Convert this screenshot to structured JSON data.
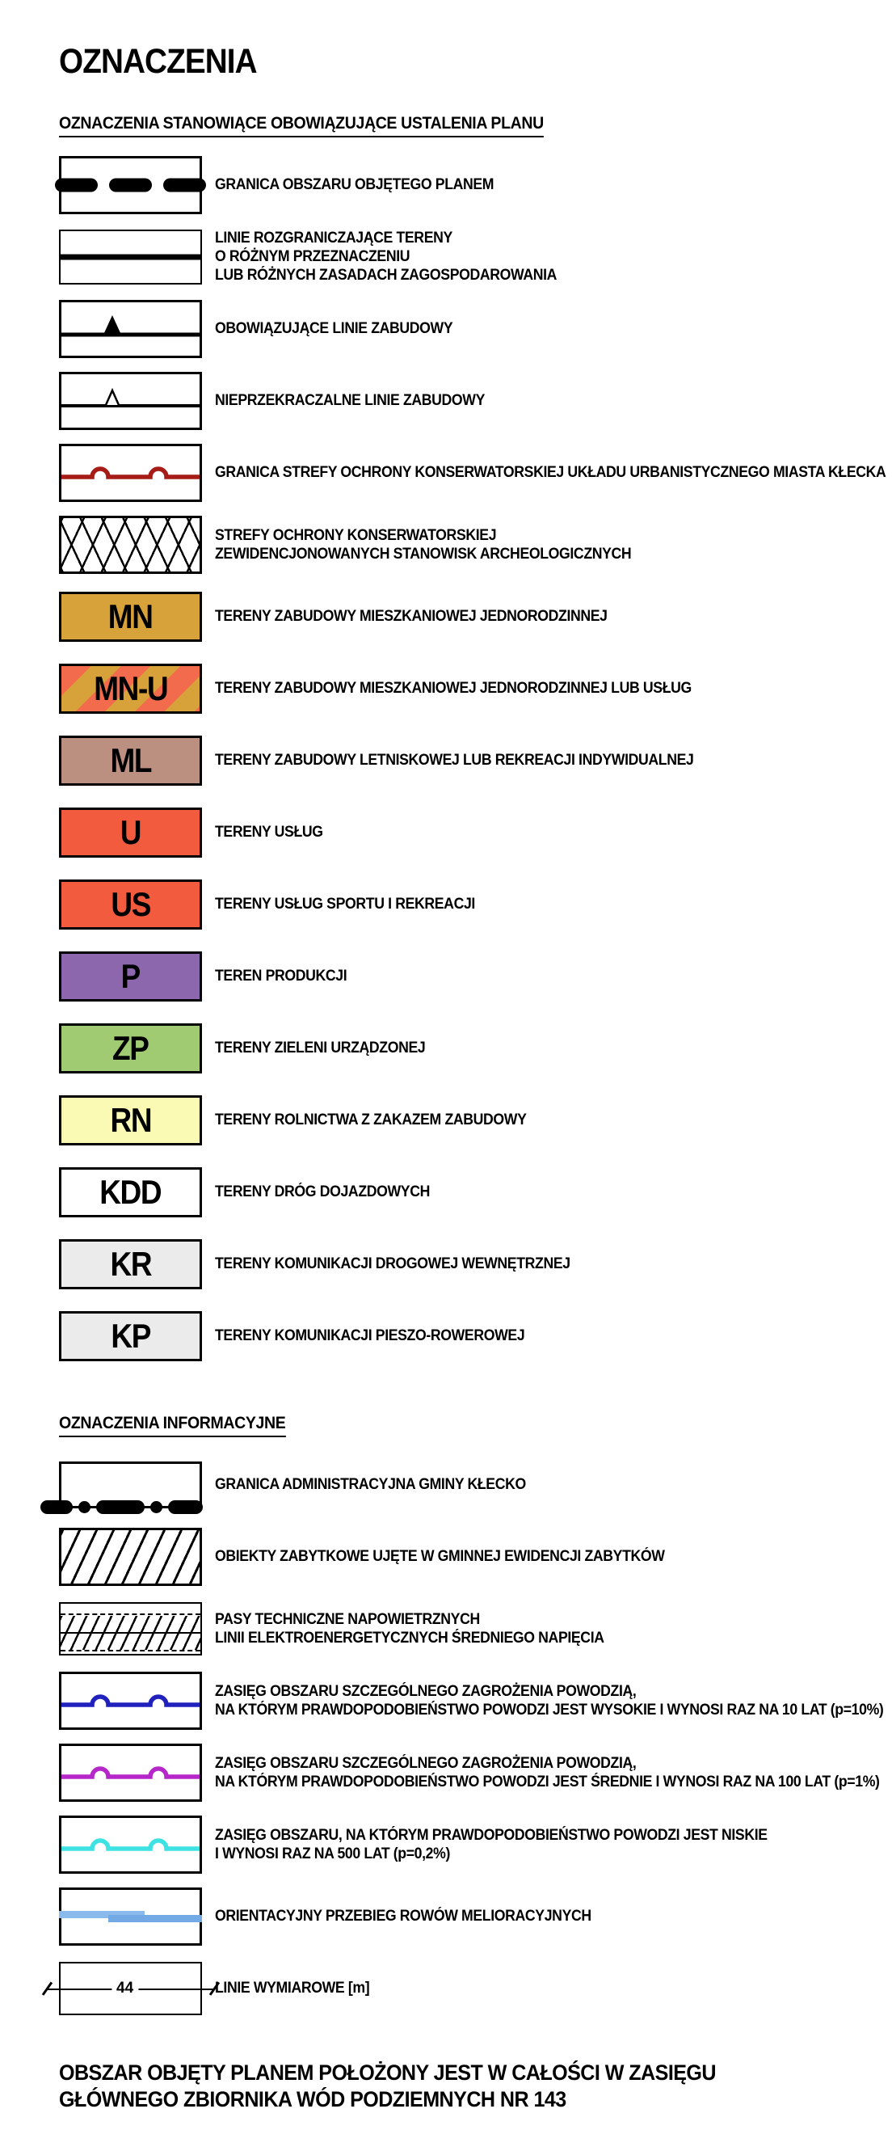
{
  "title": "OZNACZENIA",
  "sections": [
    {
      "heading": "OZNACZENIA STANOWIĄCE OBOWIĄZUJĄCE USTALENIA PLANU",
      "rows": [
        {
          "name": "plan-boundary",
          "symbol": {
            "type": "dashed-thick-line",
            "color": "#000000"
          },
          "label": [
            "GRANICA OBSZARU OBJĘTEGO PLANEM"
          ]
        },
        {
          "name": "dividing-lines",
          "symbol": {
            "type": "solid-line",
            "color": "#000000"
          },
          "label": [
            "LINIE ROZGRANICZAJĄCE TERENY",
            "O RÓŻNYM PRZEZNACZENIU",
            "LUB RÓŻNYCH ZASADACH ZAGOSPODAROWANIA"
          ]
        },
        {
          "name": "mandatory-building-line",
          "symbol": {
            "type": "line-triangle-filled",
            "color": "#000000"
          },
          "label": [
            "OBOWIĄZUJĄCE LINIE ZABUDOWY"
          ]
        },
        {
          "name": "max-building-line",
          "symbol": {
            "type": "line-triangle-open",
            "color": "#000000"
          },
          "label": [
            "NIEPRZEKRACZALNE LINIE ZABUDOWY"
          ]
        },
        {
          "name": "conservation-zone-boundary",
          "symbol": {
            "type": "bump-line",
            "color": "#A61D17"
          },
          "label": [
            "GRANICA STREFY OCHRONY KONSERWATORSKIEJ UKŁADU URBANISTYCZNEGO MIASTA KŁECKA"
          ]
        },
        {
          "name": "archaeological-zones",
          "symbol": {
            "type": "crosshatch-x",
            "color": "#000000"
          },
          "label": [
            "STREFY OCHRONY KONSERWATORSKIEJ",
            "ZEWIDENCJONOWANYCH STANOWISK ARCHEOLOGICZNYCH"
          ]
        },
        {
          "name": "zone-mn",
          "symbol": {
            "type": "zone",
            "code": "MN",
            "color": "#D8A23B"
          },
          "label": [
            "TERENY ZABUDOWY MIESZKANIOWEJ JEDNORODZINNEJ"
          ]
        },
        {
          "name": "zone-mn-u",
          "symbol": {
            "type": "zone-striped",
            "code": "MN-U",
            "stripe_colors": [
              "#F26B4D",
              "#D8A23B"
            ]
          },
          "label": [
            "TERENY ZABUDOWY MIESZKANIOWEJ JEDNORODZINNEJ LUB USŁUG"
          ]
        },
        {
          "name": "zone-ml",
          "symbol": {
            "type": "zone",
            "code": "ML",
            "color": "#BC9081"
          },
          "label": [
            "TERENY ZABUDOWY LETNISKOWEJ LUB REKREACJI INDYWIDUALNEJ"
          ]
        },
        {
          "name": "zone-u",
          "symbol": {
            "type": "zone",
            "code": "U",
            "color": "#F25B3D"
          },
          "label": [
            "TERENY USŁUG"
          ]
        },
        {
          "name": "zone-us",
          "symbol": {
            "type": "zone",
            "code": "US",
            "color": "#F25B3D"
          },
          "label": [
            "TERENY USŁUG SPORTU I REKREACJI"
          ]
        },
        {
          "name": "zone-p",
          "symbol": {
            "type": "zone",
            "code": "P",
            "color": "#8C67AE"
          },
          "label": [
            "TEREN PRODUKCJI"
          ]
        },
        {
          "name": "zone-zp",
          "symbol": {
            "type": "zone",
            "code": "ZP",
            "color": "#A1CB72"
          },
          "label": [
            "TERENY ZIELENI URZĄDZONEJ"
          ]
        },
        {
          "name": "zone-rn",
          "symbol": {
            "type": "zone",
            "code": "RN",
            "color": "#FAFAB4"
          },
          "label": [
            "TERENY ROLNICTWA Z ZAKAZEM ZABUDOWY"
          ]
        },
        {
          "name": "zone-kdd",
          "symbol": {
            "type": "zone",
            "code": "KDD",
            "color": "#FFFFFF"
          },
          "label": [
            "TERENY DRÓG DOJAZDOWYCH"
          ]
        },
        {
          "name": "zone-kr",
          "symbol": {
            "type": "zone",
            "code": "KR",
            "color": "#EBEBEB"
          },
          "label": [
            "TERENY KOMUNIKACJI DROGOWEJ WEWNĘTRZNEJ"
          ]
        },
        {
          "name": "zone-kp",
          "symbol": {
            "type": "zone",
            "code": "KP",
            "color": "#EBEBEB"
          },
          "label": [
            "TERENY KOMUNIKACJI PIESZO-ROWEROWEJ"
          ]
        }
      ]
    },
    {
      "heading": "OZNACZENIA INFORMACYJNE",
      "rows": [
        {
          "name": "gmina-admin-boundary",
          "symbol": {
            "type": "dashdot-thick-line",
            "color": "#000000"
          },
          "label": [
            "GRANICA ADMINISTRACYJNA GMINY KŁECKO"
          ]
        },
        {
          "name": "heritage-objects",
          "symbol": {
            "type": "hatch-diagonal",
            "color": "#000000"
          },
          "label": [
            "OBIEKTY ZABYTKOWE UJĘTE W GMINNEJ EWIDENCJI ZABYTKÓW"
          ]
        },
        {
          "name": "power-line-strips",
          "symbol": {
            "type": "tech-strip",
            "color": "#000000"
          },
          "label": [
            "PASY TECHNICZNE NAPOWIETRZNYCH",
            "LINII ELEKTROENERGETYCZNYCH ŚREDNIEGO NAPIĘCIA"
          ]
        },
        {
          "name": "flood-10yr",
          "symbol": {
            "type": "bump-line",
            "color": "#2121BD"
          },
          "label": [
            "ZASIĘG OBSZARU SZCZEGÓLNEGO ZAGROŻENIA POWODZIĄ,",
            "NA KTÓRYM PRAWDOPODOBIEŃSTWO POWODZI JEST WYSOKIE I WYNOSI RAZ NA 10 LAT (p=10%)"
          ]
        },
        {
          "name": "flood-100yr",
          "symbol": {
            "type": "bump-line",
            "color": "#B527C9"
          },
          "label": [
            "ZASIĘG OBSZARU SZCZEGÓLNEGO ZAGROŻENIA POWODZIĄ,",
            "NA KTÓRYM PRAWDOPODOBIEŃSTWO POWODZI JEST ŚREDNIE I WYNOSI RAZ NA 100 LAT (p=1%)"
          ]
        },
        {
          "name": "flood-500yr",
          "symbol": {
            "type": "bump-line",
            "color": "#3FE2E2"
          },
          "label": [
            "ZASIĘG OBSZARU, NA KTÓRYM PRAWDOPODOBIEŃSTWO POWODZI JEST NISKIE",
            "I WYNOSI RAZ NA 500 LAT (p=0,2%)"
          ]
        },
        {
          "name": "drainage-ditches",
          "symbol": {
            "type": "water-line",
            "colors": [
              "#8ABAEC",
              "#73A9E5"
            ]
          },
          "label": [
            "ORIENTACYJNY PRZEBIEG ROWÓW MELIORACYJNYCH"
          ]
        },
        {
          "name": "dimension-lines",
          "symbol": {
            "type": "dimension",
            "value": "44"
          },
          "label": [
            "LINIE WYMIAROWE [m]"
          ]
        }
      ]
    }
  ],
  "footer": [
    "OBSZAR OBJĘTY PLANEM POŁOŻONY JEST W CAŁOŚCI W ZASIĘGU",
    "GŁÓWNEGO ZBIORNIKA WÓD PODZIEMNYCH NR 143"
  ]
}
